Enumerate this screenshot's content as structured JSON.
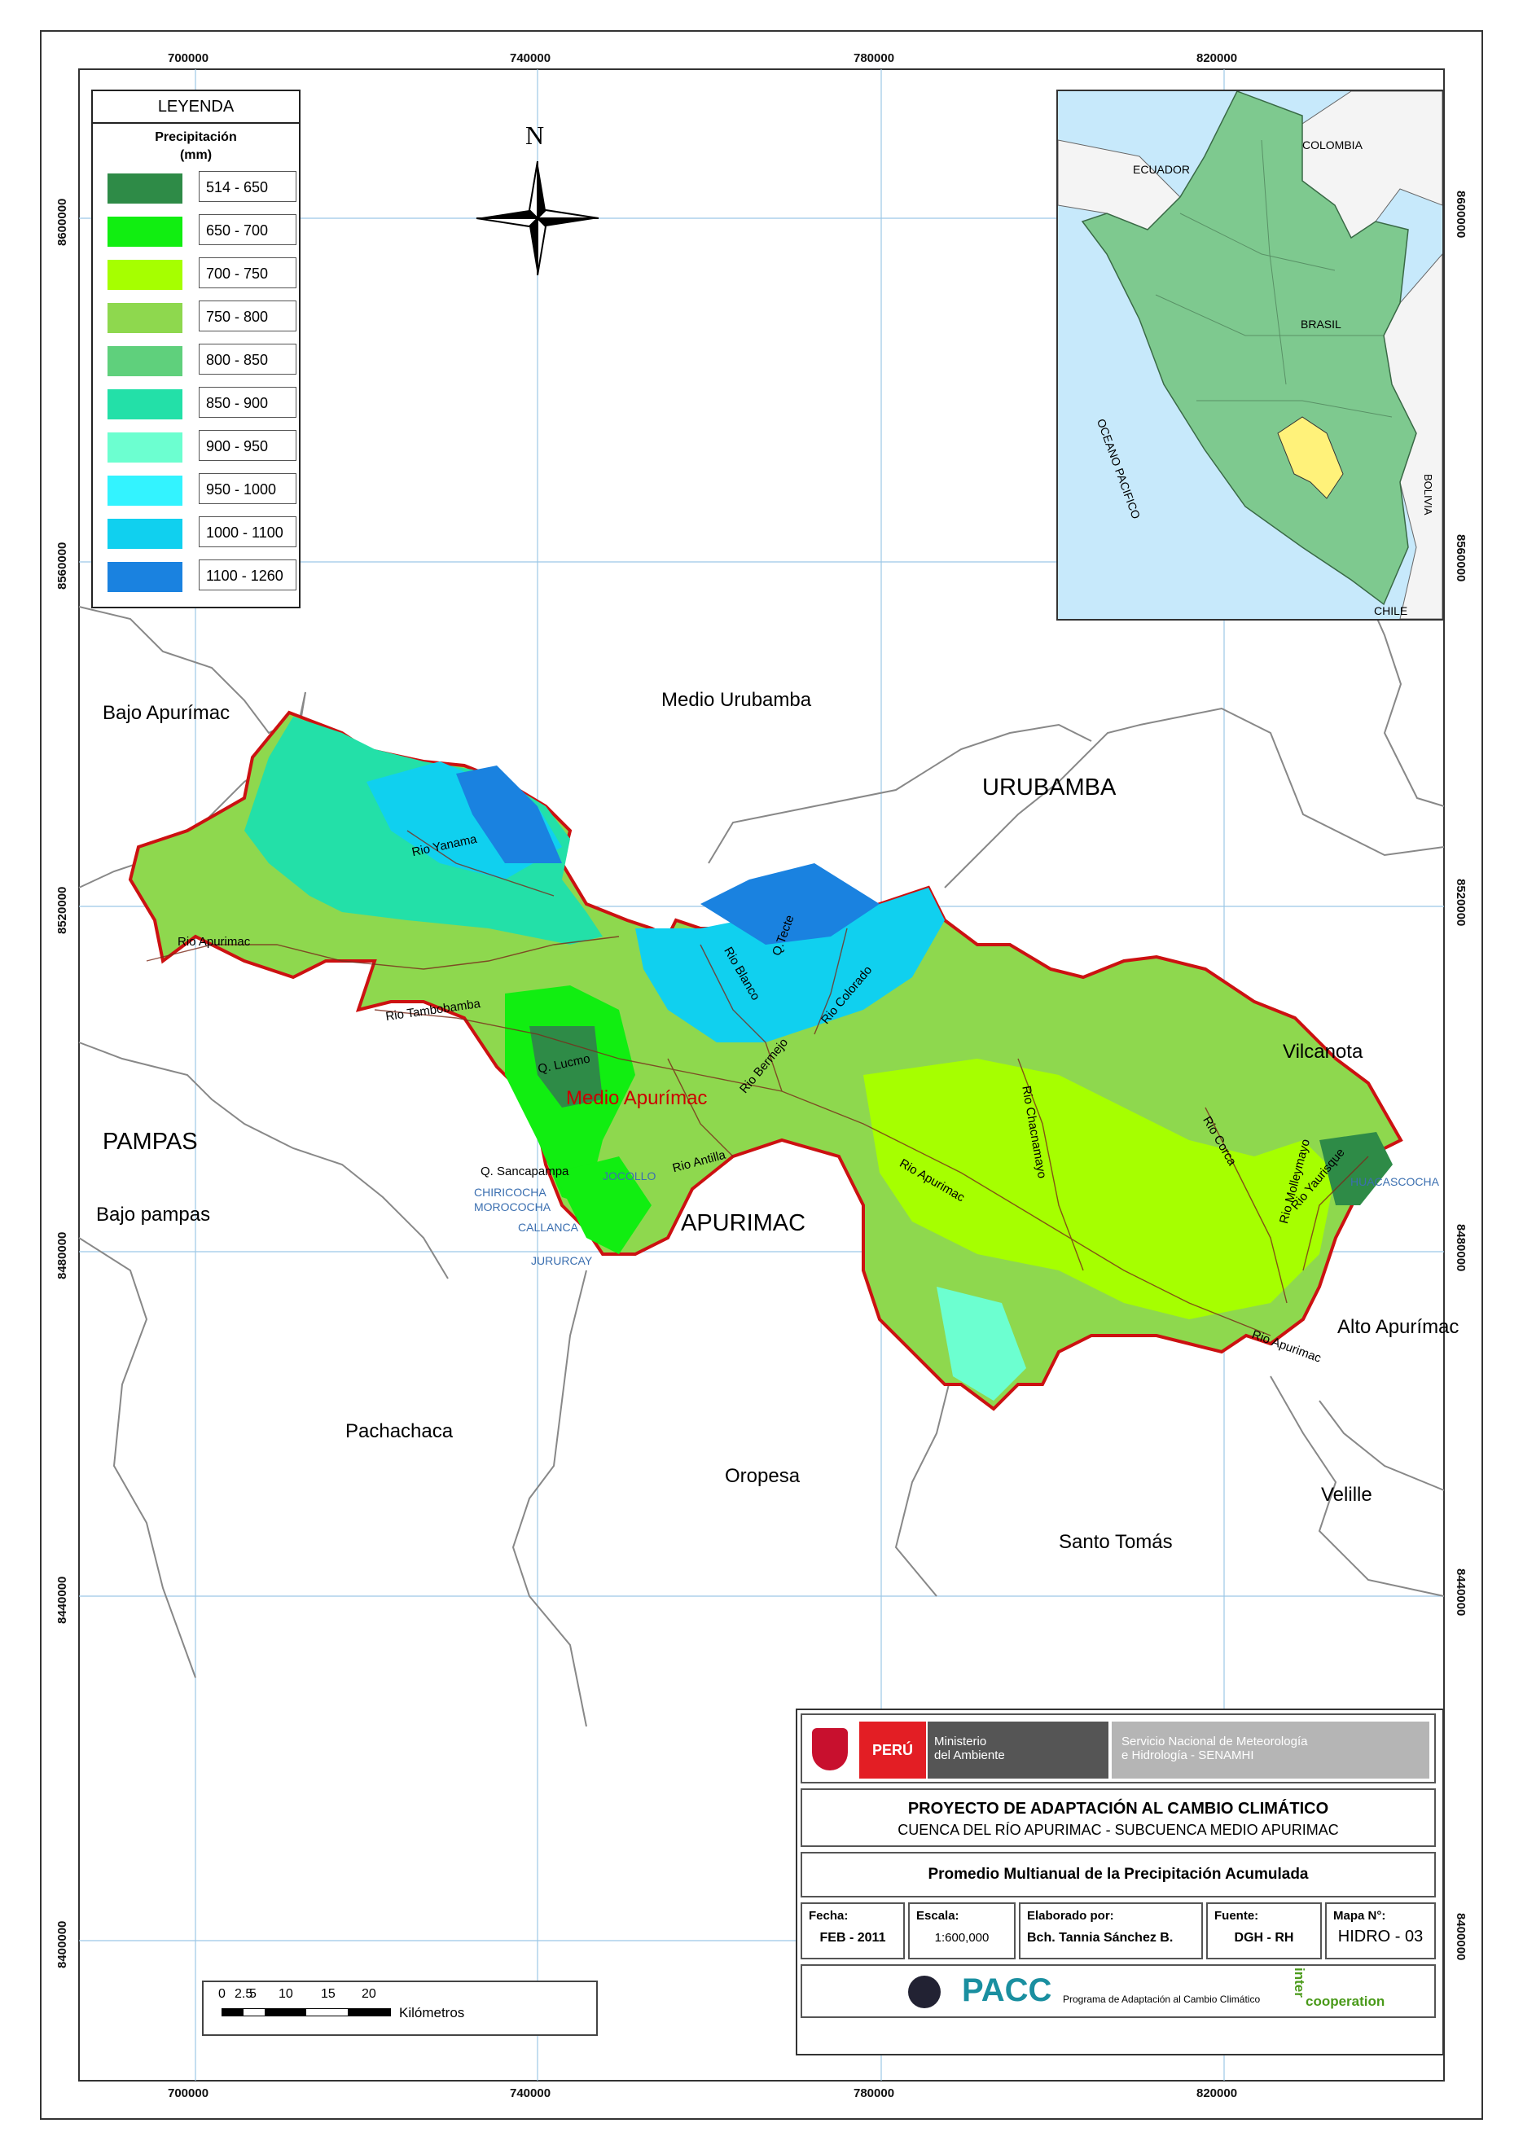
{
  "legend": {
    "title": "LEYENDA",
    "subtitle": "Precipitación",
    "units": "(mm)",
    "classes": [
      {
        "label": "514 - 650",
        "color": "#2e8b47"
      },
      {
        "label": "650 - 700",
        "color": "#11ee11"
      },
      {
        "label": "700 - 750",
        "color": "#a6ff00"
      },
      {
        "label": "750 - 800",
        "color": "#8ed84e"
      },
      {
        "label": "800 - 850",
        "color": "#5fd07c"
      },
      {
        "label": "850 - 900",
        "color": "#23e0a8"
      },
      {
        "label": "900 - 950",
        "color": "#6cffd0"
      },
      {
        "label": "950 - 1000",
        "color": "#33f3ff"
      },
      {
        "label": "1000 - 1100",
        "color": "#10d0ef"
      },
      {
        "label": "1100 - 1260",
        "color": "#1a82e0"
      }
    ]
  },
  "north_label": "N",
  "grid": {
    "x_ticks": [
      "700000",
      "740000",
      "780000",
      "820000"
    ],
    "y_ticks": [
      "8600000",
      "8560000",
      "8520000",
      "8480000",
      "8440000",
      "8400000"
    ]
  },
  "inset": {
    "labels": {
      "colombia": "COLOMBIA",
      "ecuador": "ECUADOR",
      "brasil": "BRASIL",
      "oceano": "OCEANO PACIFICO",
      "bolivia": "BOLIVIA",
      "chile": "CHILE"
    }
  },
  "regions": {
    "bajo_apurimac": "Bajo Apurímac",
    "medio_urubamba": "Medio Urubamba",
    "urubamba": "URUBAMBA",
    "vilcanota": "Vilcanota",
    "pampas": "PAMPAS",
    "bajo_pampas": "Bajo pampas",
    "apurimac": "APURIMAC",
    "medio_apurimac": "Medio Apurímac",
    "alto_apurimac": "Alto Apurímac",
    "pachachaca": "Pachachaca",
    "oropesa": "Oropesa",
    "santo_tomas": "Santo Tomás",
    "velille": "Velille"
  },
  "rivers": {
    "yanama": "Rio Yanama",
    "apurimac_w": "Rio Apurimac",
    "tambobamba": "Rio Tambobamba",
    "lucmo": "Q. Lucmo",
    "blanco": "Rio Blanco",
    "tecte": "Q.Tecte",
    "colorado": "Rio Colorado",
    "bermejo": "Rio Bermejo",
    "antilla": "Rio Antilla",
    "sancapampa": "Q. Sancapampa",
    "apurimac_c": "Rio Apurimac",
    "chacnamayo": "Rio Chacnamayo",
    "corca": "Rio Corca",
    "yaurisque": "Rio Yaurisque",
    "molleymayo": "Rio Molleymayo",
    "apurimac_e": "Rio Apurimac"
  },
  "places": {
    "jocollo": "JOCOLLO",
    "chiricocha": "CHIRICOCHA",
    "morococha": "MOROCOCHA",
    "callanca": "CALLANCA",
    "jururcay": "JURURCAY",
    "huacascocha": "HUACASCOCHA"
  },
  "title_block": {
    "peru": "PERÚ",
    "ministerio": "Ministerio\ndel Ambiente",
    "senamhi": "Servicio Nacional de Meteorología\ne Hidrología - SENAMHI",
    "project_title": "PROYECTO DE ADAPTACIÓN AL CAMBIO CLIMÁTICO",
    "project_sub": "CUENCA DEL RÍO APURIMAC - SUBCUENCA MEDIO APURIMAC",
    "map_title": "Promedio Multianual de la Precipitación Acumulada",
    "fecha_label": "Fecha:",
    "fecha": "FEB - 2011",
    "escala_label": "Escala:",
    "escala": "1:600,000",
    "elaborado_label": "Elaborado por:",
    "elaborado": "Bch. Tannia Sánchez B.",
    "fuente_label": "Fuente:",
    "fuente": "DGH - RH",
    "mapa_label": "Mapa N°:",
    "mapa": "HIDRO - 03",
    "pacc": "PACC",
    "pacc_sub": "Programa de Adaptación al Cambio Climático",
    "inter": "inter",
    "cooperation": "cooperation"
  },
  "scalebar": {
    "ticks": [
      "0",
      "2.5",
      "5",
      "10",
      "15",
      "20"
    ],
    "unit": "Kilómetros"
  }
}
